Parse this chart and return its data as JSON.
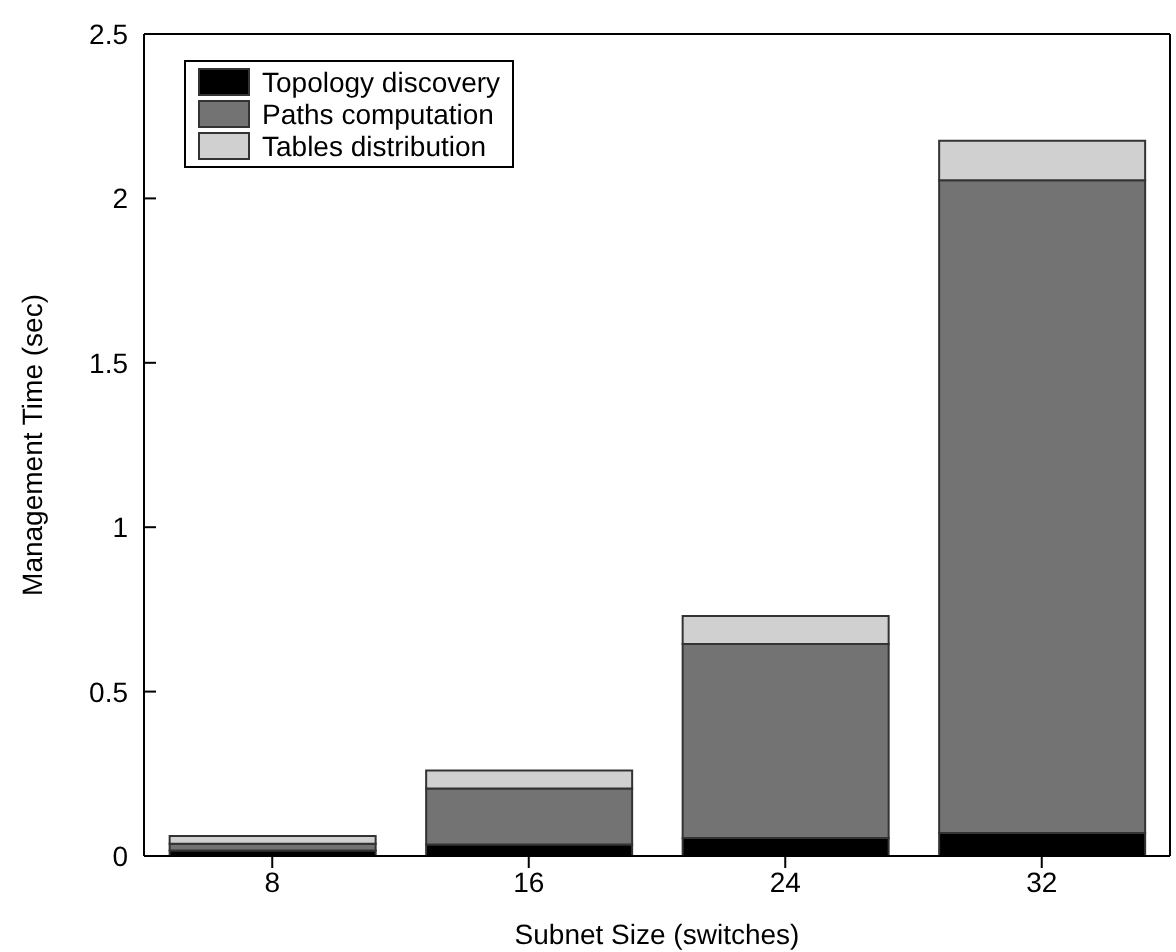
{
  "chart_data": {
    "type": "bar",
    "stacked": true,
    "xlabel": "Subnet Size (switches)",
    "ylabel": "Management Time (sec)",
    "categories": [
      "8",
      "16",
      "24",
      "32"
    ],
    "series": [
      {
        "name": "Topology discovery",
        "color": "#000000",
        "values": [
          0.017,
          0.035,
          0.055,
          0.07
        ]
      },
      {
        "name": "Paths computation",
        "color": "#737373",
        "values": [
          0.02,
          0.17,
          0.59,
          1.985
        ]
      },
      {
        "name": "Tables distribution",
        "color": "#d0d0d0",
        "values": [
          0.024,
          0.055,
          0.085,
          0.12
        ]
      }
    ],
    "ylim": [
      0,
      2.5
    ],
    "yticks": [
      0,
      0.5,
      1,
      1.5,
      2,
      2.5
    ],
    "grid": false,
    "legend": "top left"
  }
}
